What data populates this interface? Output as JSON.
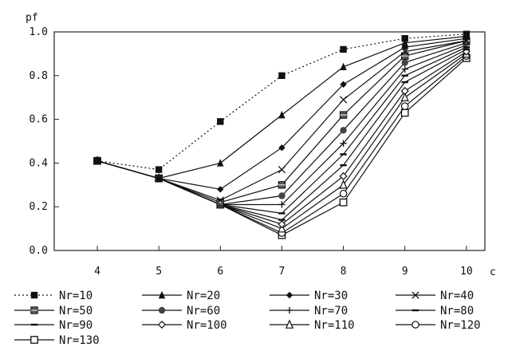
{
  "chart_data": {
    "type": "line",
    "ylabel": "pf",
    "xlabel": "c",
    "x": [
      4,
      5,
      6,
      7,
      8,
      9,
      10
    ],
    "xlim": [
      3.3,
      10.3
    ],
    "ylim": [
      0,
      1
    ],
    "y_ticks": [
      "0.0",
      "0.2",
      "0.4",
      "0.6",
      "0.8",
      "1.0"
    ],
    "x_ticks": [
      "4",
      "5",
      "6",
      "7",
      "8",
      "9",
      "10"
    ],
    "grid": false,
    "legend_position": "bottom",
    "series": [
      {
        "name": "Nr=10",
        "marker": "square-filled",
        "dash": true,
        "values": [
          0.41,
          0.37,
          0.59,
          0.8,
          0.92,
          0.97,
          0.99
        ]
      },
      {
        "name": "Nr=20",
        "marker": "triangle-filled",
        "dash": false,
        "values": [
          0.41,
          0.33,
          0.4,
          0.62,
          0.84,
          0.95,
          0.98
        ]
      },
      {
        "name": "Nr=30",
        "marker": "diamond-filled",
        "dash": false,
        "values": [
          0.41,
          0.33,
          0.28,
          0.47,
          0.76,
          0.93,
          0.97
        ]
      },
      {
        "name": "Nr=40",
        "marker": "x",
        "dash": false,
        "values": [
          0.41,
          0.33,
          0.23,
          0.37,
          0.69,
          0.91,
          0.96
        ]
      },
      {
        "name": "Nr=50",
        "marker": "square-star",
        "dash": false,
        "values": [
          0.41,
          0.33,
          0.22,
          0.3,
          0.62,
          0.89,
          0.96
        ]
      },
      {
        "name": "Nr=60",
        "marker": "circle-filled",
        "dash": false,
        "values": [
          0.41,
          0.33,
          0.21,
          0.25,
          0.55,
          0.86,
          0.95
        ]
      },
      {
        "name": "Nr=70",
        "marker": "plus",
        "dash": false,
        "values": [
          0.41,
          0.33,
          0.21,
          0.21,
          0.49,
          0.83,
          0.94
        ]
      },
      {
        "name": "Nr=80",
        "marker": "dash",
        "dash": false,
        "values": [
          0.41,
          0.33,
          0.21,
          0.17,
          0.44,
          0.8,
          0.93
        ]
      },
      {
        "name": "Nr=90",
        "marker": "dash",
        "dash": false,
        "values": [
          0.41,
          0.33,
          0.21,
          0.14,
          0.39,
          0.77,
          0.92
        ]
      },
      {
        "name": "Nr=100",
        "marker": "diamond-open",
        "dash": false,
        "values": [
          0.41,
          0.33,
          0.21,
          0.12,
          0.34,
          0.73,
          0.91
        ]
      },
      {
        "name": "Nr=110",
        "marker": "triangle-open",
        "dash": false,
        "values": [
          0.41,
          0.33,
          0.21,
          0.1,
          0.3,
          0.7,
          0.9
        ]
      },
      {
        "name": "Nr=120",
        "marker": "circle-open",
        "dash": false,
        "values": [
          0.41,
          0.33,
          0.21,
          0.08,
          0.26,
          0.66,
          0.89
        ]
      },
      {
        "name": "Nr=130",
        "marker": "square-open",
        "dash": false,
        "values": [
          0.41,
          0.33,
          0.21,
          0.07,
          0.22,
          0.63,
          0.88
        ]
      }
    ]
  }
}
